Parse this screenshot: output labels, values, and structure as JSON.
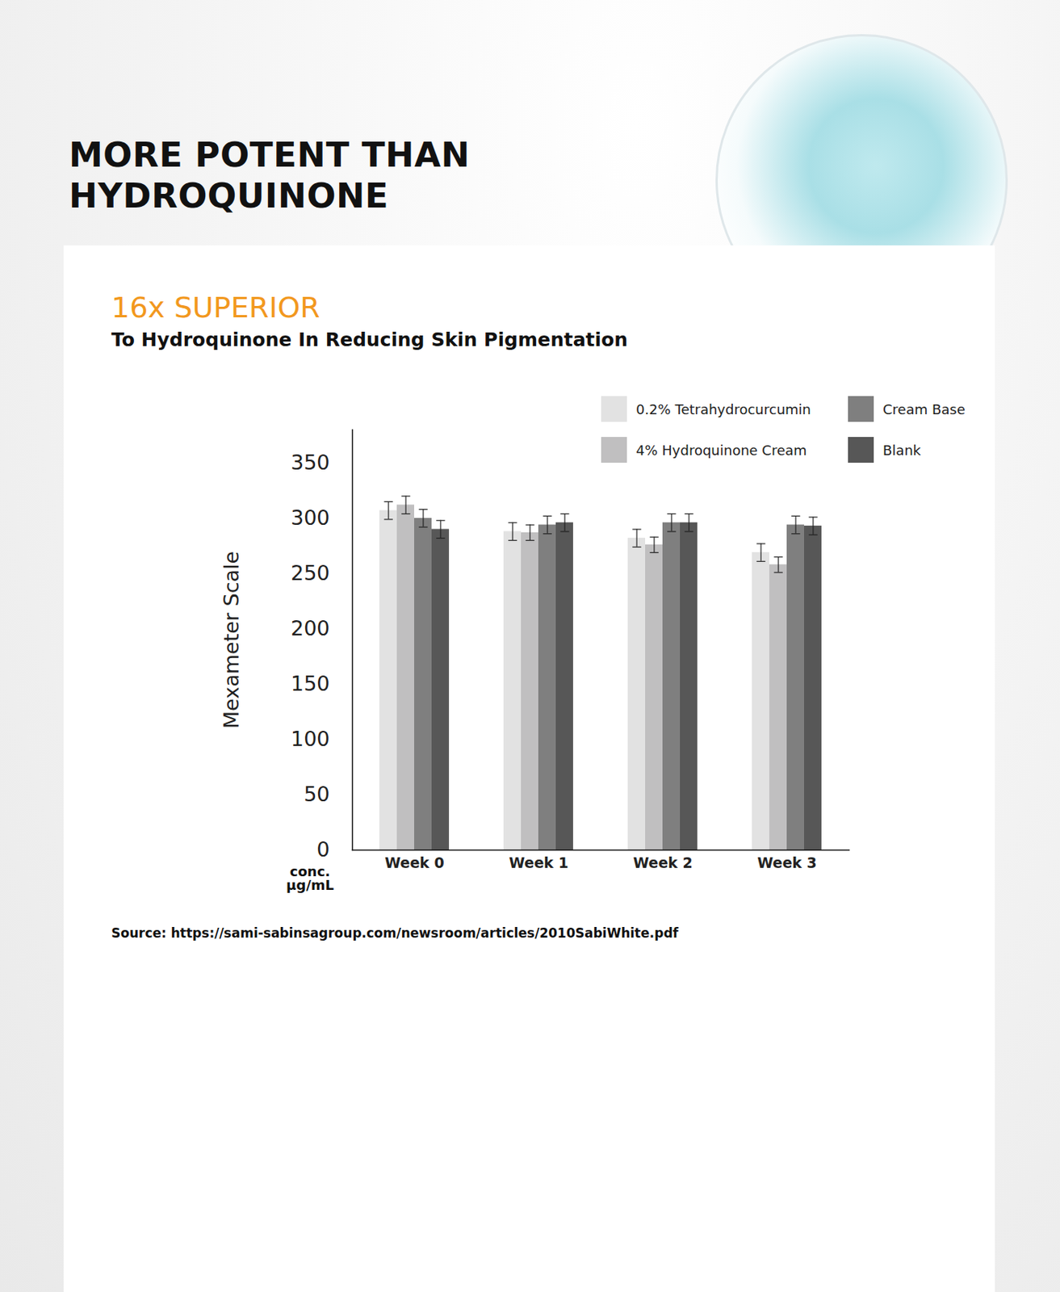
{
  "heading": "MORE POTENT THAN HYDROQUINONE",
  "chart_data": {
    "type": "bar",
    "title": "16x SUPERIOR",
    "subtitle": "To Hydroquinone In Reducing Skin Pigmentation",
    "ylabel": "Mexameter Scale",
    "xlabel": "conc. µg/mL",
    "categories": [
      "Week 0",
      "Week 1",
      "Week 2",
      "Week 3"
    ],
    "series": [
      {
        "name": "0.2% Tetrahydrocurcumin",
        "color": "#e2e2e2",
        "values": [
          307,
          288,
          282,
          269
        ],
        "errors": [
          8,
          8,
          8,
          8
        ]
      },
      {
        "name": "4% Hydroquinone Cream",
        "color": "#c0bfc0",
        "values": [
          312,
          287,
          276,
          258
        ],
        "errors": [
          8,
          7,
          7,
          7
        ]
      },
      {
        "name": "Cream Base",
        "color": "#7f7f7f",
        "values": [
          300,
          294,
          296,
          294
        ],
        "errors": [
          8,
          8,
          8,
          8
        ]
      },
      {
        "name": "Blank",
        "color": "#575757",
        "values": [
          290,
          296,
          296,
          293
        ],
        "errors": [
          8,
          8,
          8,
          8
        ]
      }
    ],
    "ylim": [
      0,
      380
    ],
    "yticks": [
      0,
      50,
      100,
      150,
      200,
      250,
      300,
      350
    ],
    "legend": "top-right",
    "grid": false,
    "source": "Source: https://sami-sabinsagroup.com/newsroom/articles/2010SabiWhite.pdf"
  }
}
